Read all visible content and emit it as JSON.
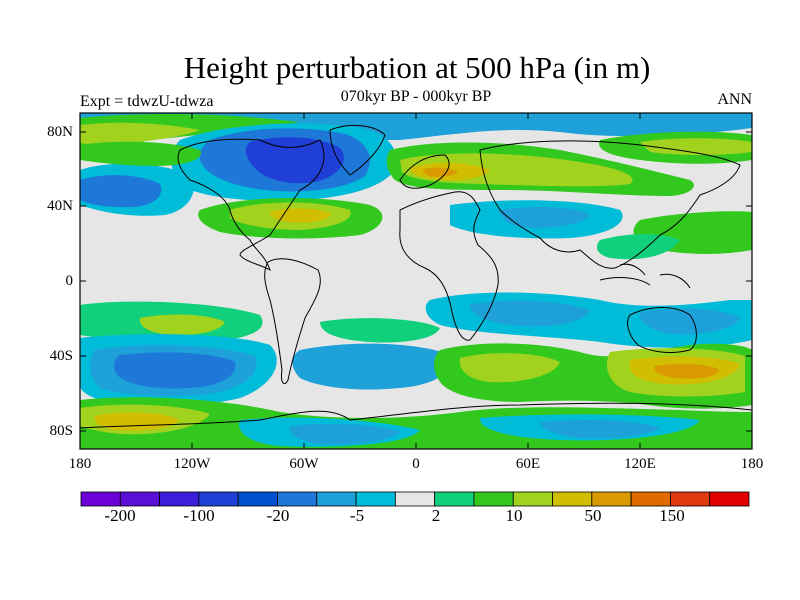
{
  "title": "Height perturbation at 500 hPa (in m)",
  "subtitle": "070kyr BP - 000kyr BP",
  "left_string": "Expt = tdwzU-tdwza",
  "right_string": "ANN",
  "lat_labels": [
    "80N",
    "40N",
    "0",
    "40S",
    "80S"
  ],
  "lon_labels": [
    "180",
    "120W",
    "60W",
    "0",
    "60E",
    "120E",
    "180"
  ],
  "colorbar": {
    "colors": [
      "#6b00d9",
      "#5b0fd6",
      "#3b1ed9",
      "#1f3fd6",
      "#0050d0",
      "#1e78d8",
      "#1ea0d8",
      "#00bcd8",
      "#e6e6e6",
      "#10d07c",
      "#32c81e",
      "#a0d21e",
      "#d2be00",
      "#d89a00",
      "#e06a00",
      "#e03a10",
      "#e00000"
    ],
    "labels": [
      "-200",
      "-100",
      "-20",
      "-5",
      "2",
      "10",
      "50",
      "150"
    ]
  },
  "palette": {
    "neutral": "#e6e6e6",
    "blue_light": "#00bcd8",
    "blue_mid": "#1ea0d8",
    "blue_strong": "#1e78d8",
    "blue_deep": "#0050d0",
    "blue_darkest": "#1f3fd6",
    "green_light": "#10d07c",
    "green": "#32c81e",
    "yellow_green": "#a0d21e",
    "yellow": "#d2be00",
    "orange": "#d89a00"
  }
}
